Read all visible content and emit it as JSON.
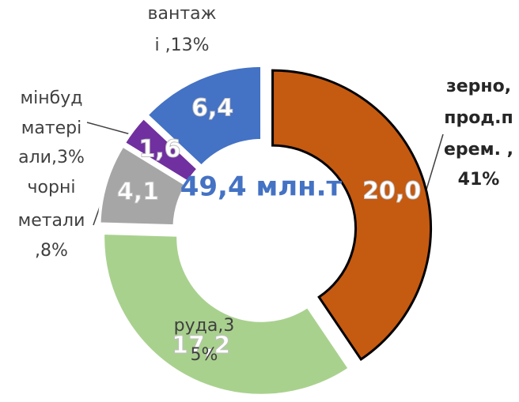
{
  "chart_data": {
    "type": "pie",
    "donut": true,
    "center_label": "49,4 млн.т",
    "categories": [
      [
        "зерно,",
        "прод.п",
        "ерем. ,",
        "41%"
      ],
      [
        "руда,3",
        "5%"
      ],
      [
        "чорні",
        "метали",
        ",8%"
      ],
      [
        "мінбуд",
        "матері",
        "али,3%"
      ],
      [
        "вантаж",
        "і ,13%"
      ]
    ],
    "values": [
      20.0,
      17.2,
      4.1,
      1.6,
      6.4
    ],
    "value_labels": [
      "20,0",
      "17,2",
      "4,1",
      "1,6",
      "6,4"
    ],
    "colors": [
      "#c55a11",
      "#a9d18e",
      "#a6a6a6",
      "#7030a0",
      "#4472c4"
    ]
  }
}
